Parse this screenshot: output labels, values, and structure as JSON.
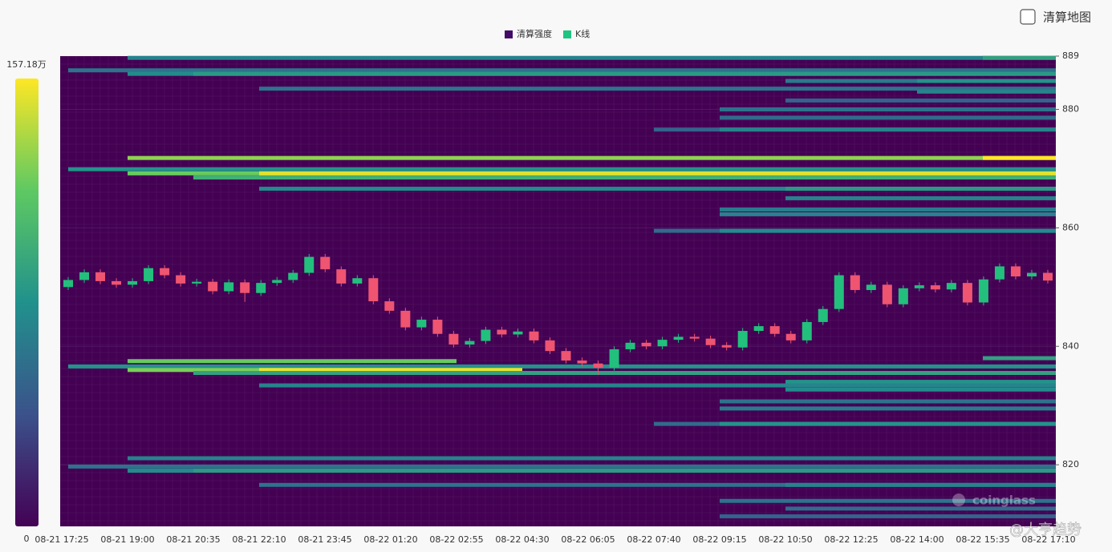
{
  "toggle": {
    "label": "清算地图"
  },
  "watermarks": [
    "coinglass",
    "@大亨趋势"
  ],
  "chart_data": {
    "type": "heatmap",
    "series": [
      {
        "name": "清算强度",
        "color": "#440a68"
      },
      {
        "name": "K线",
        "color": "#1ec47f"
      }
    ],
    "x": [
      "08-21 17:25",
      "08-21 19:00",
      "08-21 20:35",
      "08-21 22:10",
      "08-21 23:45",
      "08-22 01:20",
      "08-22 02:55",
      "08-22 04:30",
      "08-22 06:05",
      "08-22 07:40",
      "08-22 09:15",
      "08-22 10:50",
      "08-22 12:25",
      "08-22 14:00",
      "08-22 15:35",
      "08-22 17:10"
    ],
    "ylim": [
      809.6,
      889
    ],
    "yticks": [
      820,
      840,
      860,
      880,
      889
    ],
    "grid": true,
    "colorbar": {
      "range": [
        0,
        157.18
      ],
      "ticks": [
        {
          "value": 157.18,
          "label": "157.18万"
        },
        0
      ]
    },
    "up_color": "#22c07c",
    "down_color": "#ef5470",
    "bands": [
      {
        "price": 888.7,
        "from": 1,
        "value": 70
      },
      {
        "price": 888.7,
        "from": 14,
        "value": 90
      },
      {
        "price": 886.6,
        "from": 0,
        "value": 60
      },
      {
        "price": 886.0,
        "from": 1,
        "value": 75
      },
      {
        "price": 886.0,
        "from": 2,
        "value": 85
      },
      {
        "price": 884.8,
        "from": 11,
        "value": 65
      },
      {
        "price": 884.8,
        "from": 13,
        "value": 80
      },
      {
        "price": 883.5,
        "from": 3,
        "value": 60
      },
      {
        "price": 883.0,
        "from": 13,
        "value": 70
      },
      {
        "price": 881.5,
        "from": 11,
        "value": 50
      },
      {
        "price": 880.0,
        "from": 10,
        "value": 60
      },
      {
        "price": 878.6,
        "from": 10,
        "value": 55
      },
      {
        "price": 876.6,
        "from": 9,
        "value": 50
      },
      {
        "price": 876.6,
        "from": 10,
        "value": 70
      },
      {
        "price": 871.8,
        "from": 1,
        "value": 130
      },
      {
        "price": 871.8,
        "from": 14,
        "value": 157
      },
      {
        "price": 869.9,
        "from": 0,
        "value": 80
      },
      {
        "price": 869.2,
        "from": 1,
        "value": 120
      },
      {
        "price": 869.2,
        "from": 3,
        "value": 150
      },
      {
        "price": 868.5,
        "from": 2,
        "value": 100
      },
      {
        "price": 866.6,
        "from": 3,
        "value": 75
      },
      {
        "price": 866.6,
        "from": 11,
        "value": 85
      },
      {
        "price": 865.0,
        "from": 11,
        "value": 70
      },
      {
        "price": 863.1,
        "from": 10,
        "value": 65
      },
      {
        "price": 862.3,
        "from": 10,
        "value": 70
      },
      {
        "price": 859.5,
        "from": 9,
        "value": 55
      },
      {
        "price": 859.5,
        "from": 10,
        "value": 75
      },
      {
        "price": 838.0,
        "from": 14,
        "value": 90
      },
      {
        "price": 837.5,
        "from": 1,
        "to": 6,
        "value": 120
      },
      {
        "price": 836.6,
        "from": 0,
        "value": 80
      },
      {
        "price": 836.0,
        "from": 1,
        "to": 7,
        "value": 125
      },
      {
        "price": 836.0,
        "from": 3,
        "to": 7,
        "value": 152
      },
      {
        "price": 835.5,
        "from": 2,
        "value": 90
      },
      {
        "price": 834.0,
        "from": 11,
        "value": 80
      },
      {
        "price": 833.4,
        "from": 3,
        "value": 70
      },
      {
        "price": 832.7,
        "from": 11,
        "value": 75
      },
      {
        "price": 830.7,
        "from": 10,
        "value": 60
      },
      {
        "price": 829.5,
        "from": 10,
        "value": 65
      },
      {
        "price": 826.9,
        "from": 9,
        "value": 55
      },
      {
        "price": 826.9,
        "from": 10,
        "value": 80
      },
      {
        "price": 821.1,
        "from": 1,
        "value": 70
      },
      {
        "price": 819.7,
        "from": 0,
        "value": 60
      },
      {
        "price": 819.0,
        "from": 1,
        "value": 75
      },
      {
        "price": 819.0,
        "from": 2,
        "value": 85
      },
      {
        "price": 816.6,
        "from": 3,
        "value": 60
      },
      {
        "price": 816.6,
        "from": 11,
        "value": 70
      },
      {
        "price": 813.9,
        "from": 10,
        "value": 60
      },
      {
        "price": 812.6,
        "from": 11,
        "value": 55
      },
      {
        "price": 811.3,
        "from": 10,
        "value": 50
      }
    ],
    "candles": {
      "open": [
        850.0,
        851.2,
        852.5,
        851.0,
        850.4,
        851.0,
        853.2,
        852.0,
        850.6,
        850.9,
        849.3,
        850.8,
        849.0,
        850.7,
        851.2,
        852.4,
        855.1,
        853.0,
        850.6,
        851.5,
        847.6,
        846.0,
        843.2,
        844.5,
        842.1,
        840.3,
        840.9,
        842.8,
        842.0,
        842.5,
        841.0,
        839.2,
        837.6,
        837.1,
        836.4,
        839.5,
        840.6,
        840.0,
        841.1,
        841.6,
        841.3,
        840.2,
        839.8,
        842.6,
        843.4,
        842.1,
        841.0,
        844.1,
        846.3,
        852.0,
        849.5,
        850.4,
        847.1,
        849.8,
        850.3,
        849.6,
        850.7,
        847.4,
        851.3,
        853.5,
        851.8,
        852.4
      ],
      "high": [
        851.7,
        853.0,
        853.0,
        851.5,
        851.5,
        853.7,
        853.7,
        852.5,
        851.4,
        851.4,
        851.3,
        851.3,
        851.2,
        851.7,
        852.9,
        855.6,
        855.6,
        853.5,
        852.0,
        852.0,
        848.1,
        846.5,
        845.0,
        845.0,
        842.6,
        841.4,
        843.3,
        843.3,
        843.0,
        843.0,
        841.5,
        839.7,
        838.1,
        837.6,
        840.0,
        841.1,
        841.1,
        841.6,
        842.1,
        842.1,
        841.8,
        840.7,
        843.1,
        843.9,
        843.9,
        842.6,
        844.6,
        846.8,
        852.5,
        852.5,
        850.9,
        850.9,
        850.3,
        850.8,
        850.8,
        851.2,
        851.2,
        851.8,
        854.0,
        854.0,
        852.9,
        852.9
      ],
      "low": [
        849.5,
        850.7,
        850.5,
        849.9,
        849.9,
        850.5,
        851.5,
        850.1,
        850.1,
        848.8,
        848.8,
        847.5,
        848.5,
        850.2,
        850.7,
        851.9,
        852.5,
        850.1,
        850.1,
        847.1,
        845.5,
        842.7,
        842.7,
        841.6,
        839.8,
        839.8,
        840.4,
        841.5,
        841.5,
        840.5,
        838.7,
        837.1,
        836.6,
        835.2,
        835.9,
        839.0,
        839.5,
        839.5,
        840.6,
        840.8,
        839.7,
        839.3,
        839.3,
        842.1,
        841.6,
        840.5,
        840.5,
        843.6,
        845.8,
        849.0,
        849.0,
        846.6,
        846.6,
        849.3,
        849.1,
        849.1,
        846.9,
        846.9,
        850.8,
        851.3,
        851.3,
        850.6
      ],
      "close": [
        851.2,
        852.5,
        851.0,
        850.4,
        851.0,
        853.2,
        852.0,
        850.6,
        850.9,
        849.3,
        850.8,
        849.0,
        850.7,
        851.2,
        852.4,
        855.1,
        853.0,
        850.6,
        851.5,
        847.6,
        846.0,
        843.2,
        844.5,
        842.1,
        840.3,
        840.9,
        842.8,
        842.0,
        842.5,
        841.0,
        839.2,
        837.6,
        837.1,
        836.4,
        839.5,
        840.6,
        840.0,
        841.1,
        841.6,
        841.3,
        840.2,
        839.8,
        842.6,
        843.4,
        842.1,
        841.0,
        844.1,
        846.3,
        852.0,
        849.5,
        850.4,
        847.1,
        849.8,
        850.3,
        849.6,
        850.7,
        847.4,
        851.3,
        853.5,
        851.8,
        852.4,
        851.1
      ]
    }
  }
}
